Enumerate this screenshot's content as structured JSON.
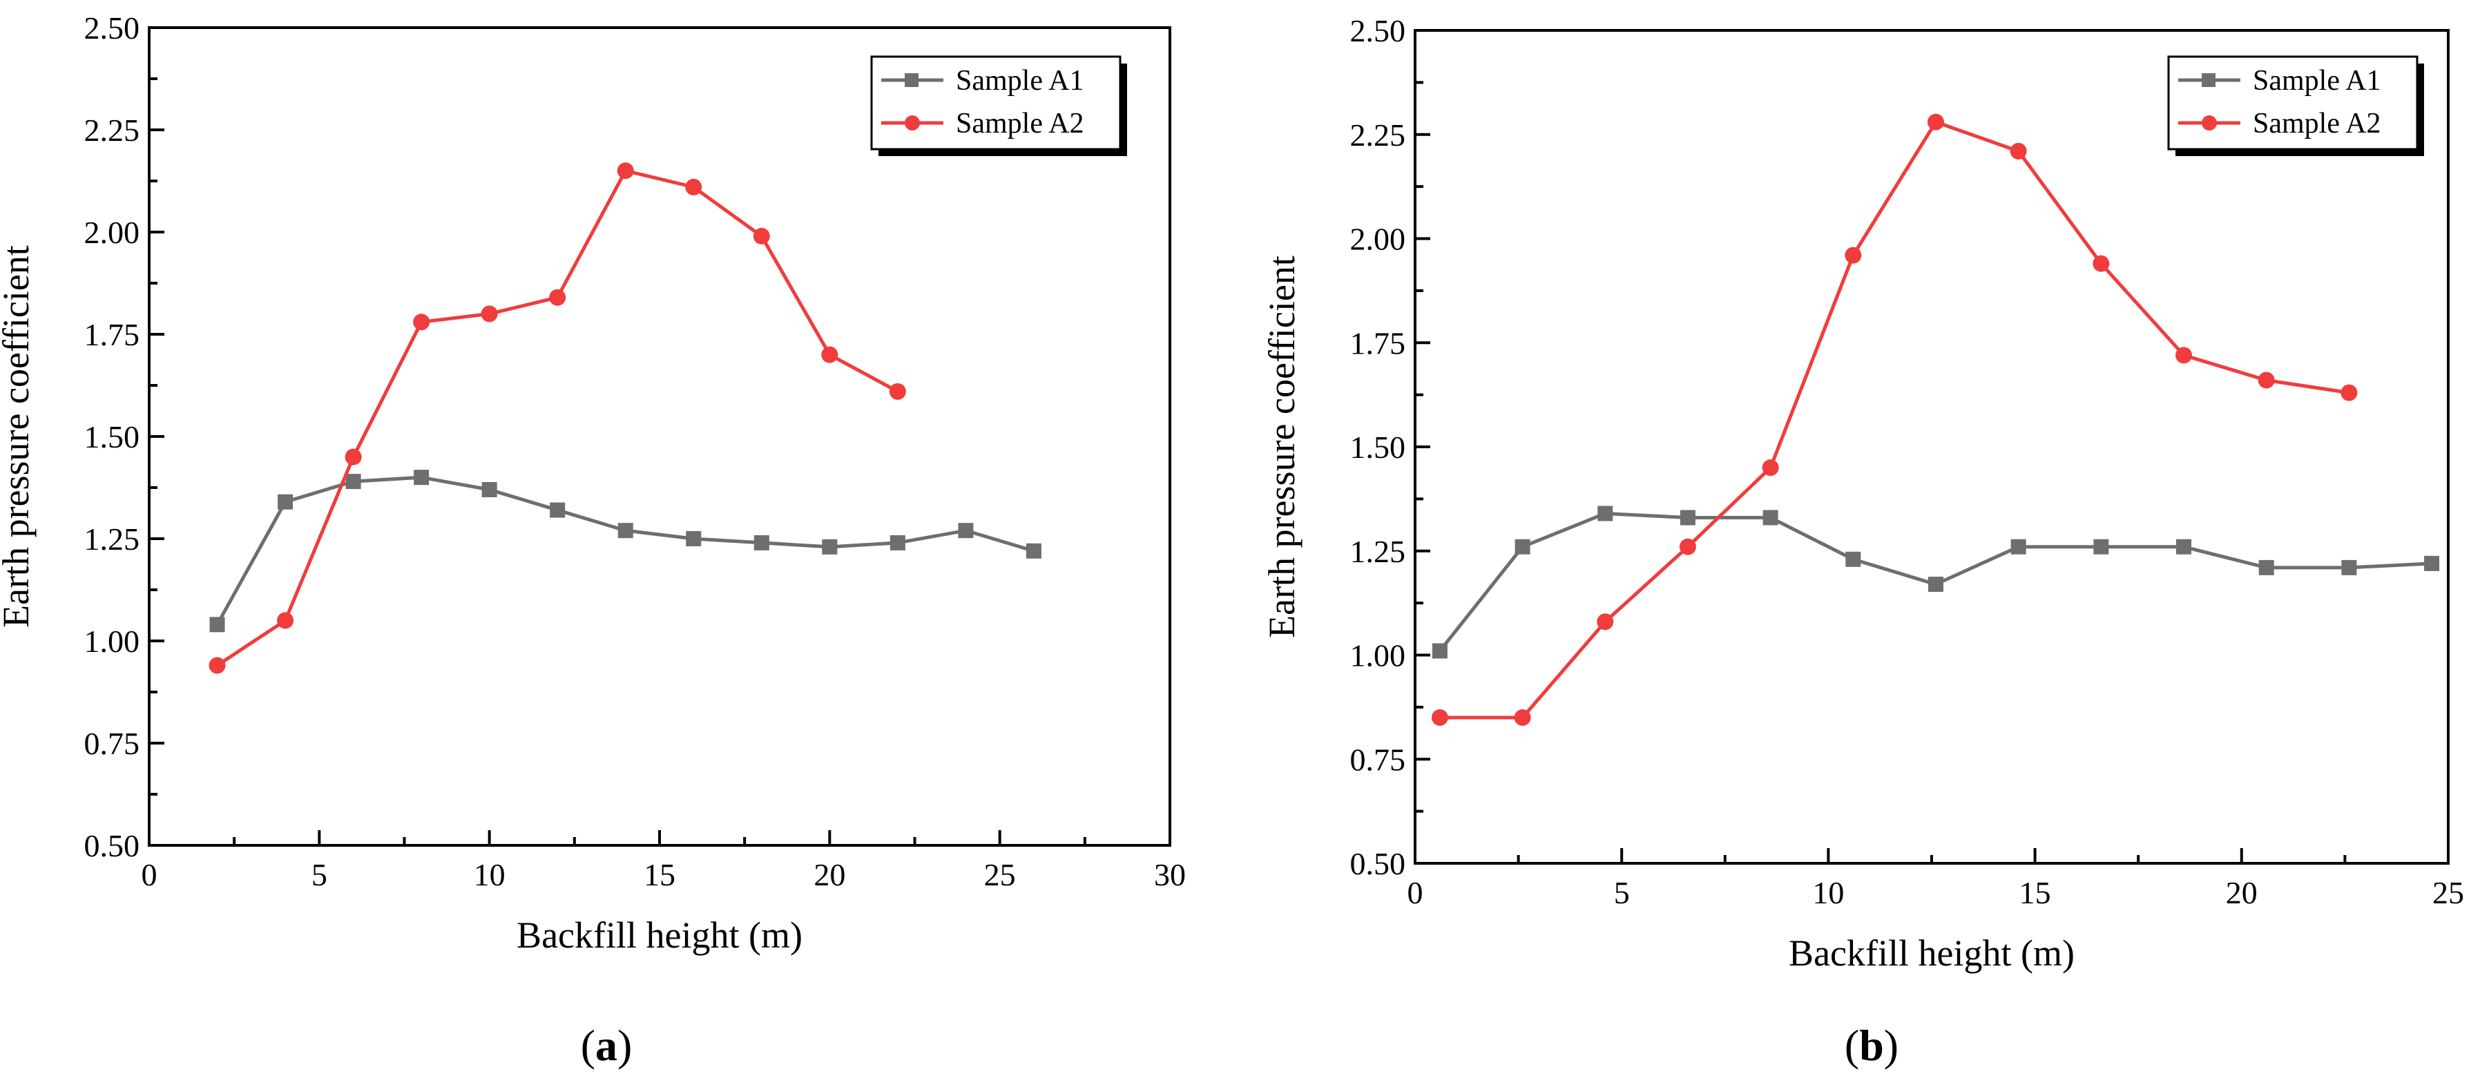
{
  "chart_data": [
    {
      "type": "line",
      "panel_label": "a",
      "xlabel": "Backfill height (m)",
      "ylabel": "Earth pressure coefficient",
      "xlim": [
        0,
        30
      ],
      "ylim": [
        0.5,
        2.5
      ],
      "xticks": [
        0,
        5,
        10,
        15,
        20,
        25,
        30
      ],
      "xtick_labels": [
        "0",
        "5",
        "10",
        "15",
        "20",
        "25",
        "30"
      ],
      "yticks": [
        0.5,
        0.75,
        1.0,
        1.25,
        1.5,
        1.75,
        2.0,
        2.25,
        2.5
      ],
      "ytick_labels": [
        "0.50",
        "0.75",
        "1.00",
        "1.25",
        "1.50",
        "1.75",
        "2.00",
        "2.25",
        "2.50"
      ],
      "legend_position": "top-right",
      "series": [
        {
          "name": "Sample A1",
          "color": "#6e6e6e",
          "marker": "square",
          "x": [
            2,
            4,
            6,
            8,
            10,
            12,
            14,
            16,
            18,
            20,
            22,
            24,
            26
          ],
          "y": [
            1.04,
            1.34,
            1.39,
            1.4,
            1.37,
            1.32,
            1.27,
            1.25,
            1.24,
            1.23,
            1.24,
            1.27,
            1.22
          ]
        },
        {
          "name": "Sample A2",
          "color": "#f03c3c",
          "marker": "circle",
          "x": [
            2,
            4,
            6,
            8,
            10,
            12,
            14,
            16,
            18,
            20,
            22
          ],
          "y": [
            0.94,
            1.05,
            1.45,
            1.78,
            1.8,
            1.84,
            2.15,
            2.11,
            1.99,
            1.7,
            1.61
          ]
        }
      ]
    },
    {
      "type": "line",
      "panel_label": "b",
      "xlabel": "Backfill height (m)",
      "ylabel": "Earth pressure coefficient",
      "xlim": [
        0,
        25
      ],
      "ylim": [
        0.5,
        2.5
      ],
      "xticks": [
        0,
        5,
        10,
        15,
        20,
        25
      ],
      "xtick_labels": [
        "0",
        "5",
        "10",
        "15",
        "20",
        "25"
      ],
      "yticks": [
        0.5,
        0.75,
        1.0,
        1.25,
        1.5,
        1.75,
        2.0,
        2.25,
        2.5
      ],
      "ytick_labels": [
        "0.50",
        "0.75",
        "1.00",
        "1.25",
        "1.50",
        "1.75",
        "2.00",
        "2.25",
        "2.50"
      ],
      "legend_position": "top-right",
      "series": [
        {
          "name": "Sample A1",
          "color": "#6e6e6e",
          "marker": "square",
          "x": [
            0.6,
            2.6,
            4.6,
            6.6,
            8.6,
            10.6,
            12.6,
            14.6,
            16.6,
            18.6,
            20.6,
            22.6,
            24.6
          ],
          "y": [
            1.01,
            1.26,
            1.34,
            1.33,
            1.33,
            1.23,
            1.17,
            1.26,
            1.26,
            1.26,
            1.21,
            1.21,
            1.22
          ]
        },
        {
          "name": "Sample A2",
          "color": "#f03c3c",
          "marker": "circle",
          "x": [
            0.6,
            2.6,
            4.6,
            6.6,
            8.6,
            10.6,
            12.6,
            14.6,
            16.6,
            18.6,
            20.6,
            22.6
          ],
          "y": [
            0.85,
            0.85,
            1.08,
            1.26,
            1.45,
            1.96,
            2.28,
            2.21,
            1.94,
            1.72,
            1.66,
            1.63
          ]
        }
      ]
    }
  ]
}
